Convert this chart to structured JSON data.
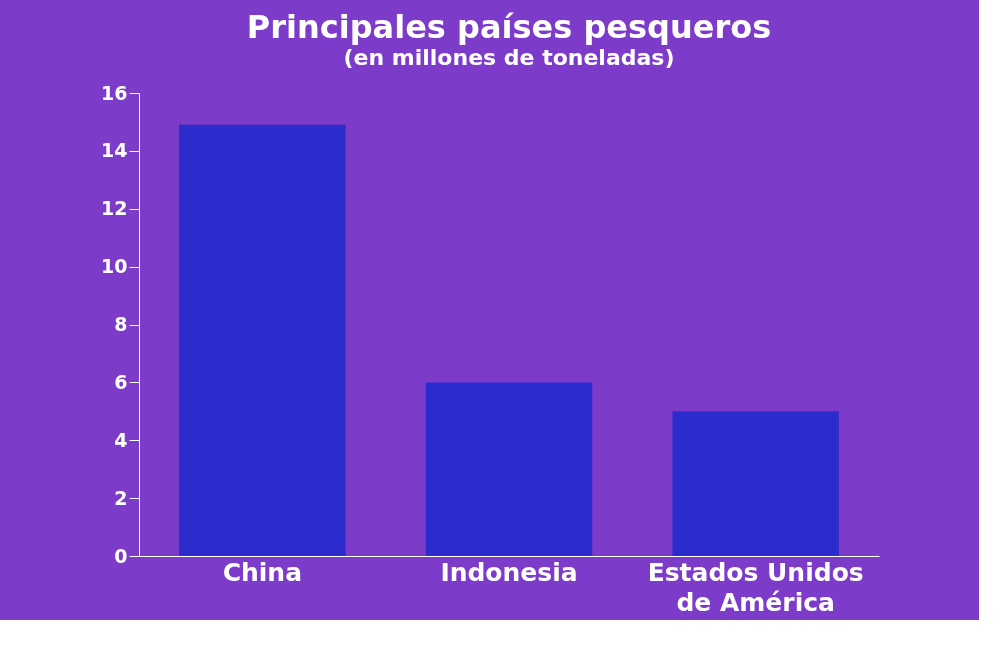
{
  "chart_data": {
    "type": "bar",
    "title": "Principales países pesqueros",
    "subtitle": "(en millones de toneladas)",
    "categories": [
      "China",
      "Indonesia",
      "Estados Unidos de América"
    ],
    "values": [
      14.9,
      6,
      5
    ],
    "color": "#2c2ccc",
    "ylim": [
      0,
      16
    ],
    "yticks": [
      0,
      2,
      4,
      6,
      8,
      10,
      12,
      14,
      16
    ],
    "grid": false
  }
}
